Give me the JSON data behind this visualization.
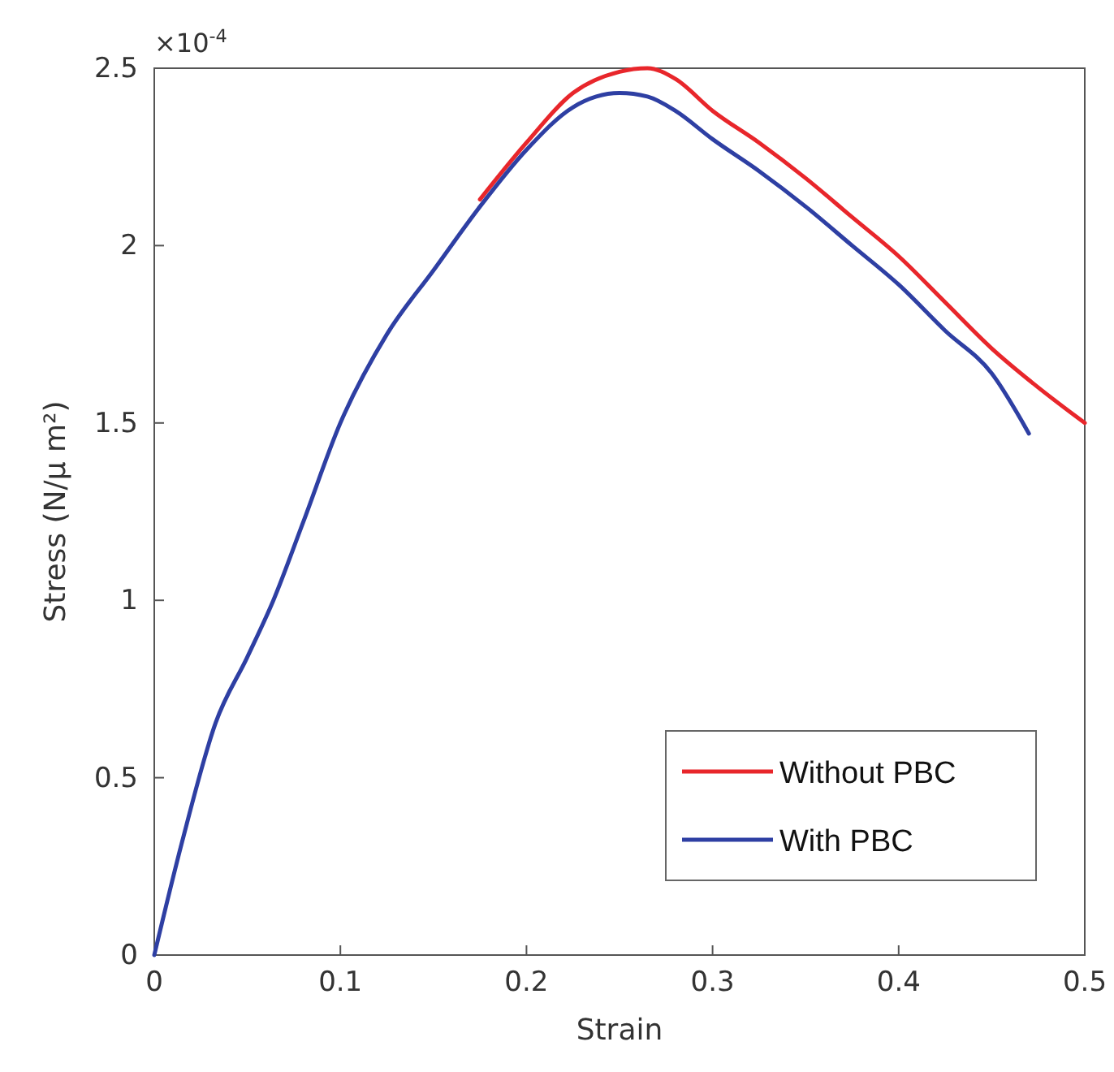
{
  "chart_data": {
    "type": "line",
    "xlabel": "Strain",
    "ylabel": "Stress (N/μ m²)",
    "annotations": [
      "×10$^{-4}$"
    ],
    "xlim": [
      0,
      0.5
    ],
    "xticks": [
      0,
      0.1,
      0.2,
      0.3,
      0.4,
      0.5
    ],
    "ylim": [
      0,
      2.5
    ],
    "yticks": [
      0,
      0.5,
      1,
      1.5,
      2,
      2.5
    ],
    "grid": false,
    "legend": "bottom right",
    "line_style": "solid",
    "marker": "none",
    "series": [
      {
        "name": "Without PBC",
        "color": "#e8262b",
        "x": [
          0.175,
          0.2,
          0.225,
          0.25,
          0.265,
          0.28,
          0.3,
          0.325,
          0.35,
          0.375,
          0.4,
          0.425,
          0.45,
          0.475,
          0.5
        ],
        "values": [
          2.13,
          2.29,
          2.43,
          2.49,
          2.5,
          2.47,
          2.38,
          2.29,
          2.19,
          2.08,
          1.97,
          1.84,
          1.71,
          1.6,
          1.5
        ]
      },
      {
        "name": "With PBC",
        "color": "#2e3fa3",
        "x": [
          0,
          0.015,
          0.033,
          0.05,
          0.064,
          0.08,
          0.1,
          0.125,
          0.15,
          0.175,
          0.2,
          0.225,
          0.25,
          0.265,
          0.28,
          0.3,
          0.325,
          0.35,
          0.375,
          0.4,
          0.425,
          0.45,
          0.47
        ],
        "values": [
          0,
          0.32,
          0.655,
          0.84,
          1.0,
          1.22,
          1.5,
          1.75,
          1.93,
          2.11,
          2.27,
          2.39,
          2.43,
          2.42,
          2.38,
          2.3,
          2.21,
          2.11,
          2.0,
          1.89,
          1.76,
          1.64,
          1.47
        ]
      }
    ]
  }
}
